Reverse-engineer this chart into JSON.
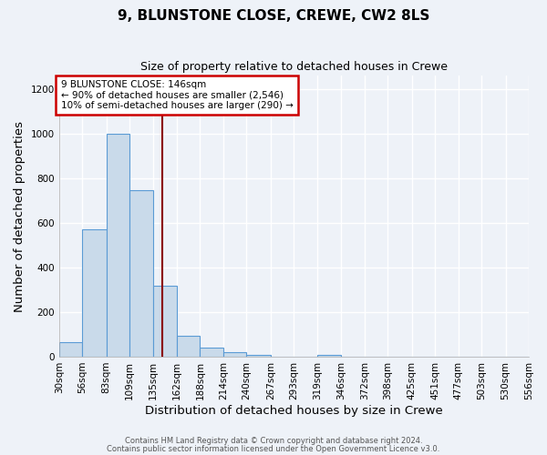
{
  "title": "9, BLUNSTONE CLOSE, CREWE, CW2 8LS",
  "subtitle": "Size of property relative to detached houses in Crewe",
  "xlabel": "Distribution of detached houses by size in Crewe",
  "ylabel": "Number of detached properties",
  "bar_edges": [
    30,
    56,
    83,
    109,
    135,
    162,
    188,
    214,
    240,
    267,
    293,
    319,
    346,
    372,
    398,
    425,
    451,
    477,
    503,
    530,
    556
  ],
  "bar_heights": [
    65,
    570,
    1000,
    745,
    320,
    95,
    40,
    22,
    10,
    0,
    0,
    10,
    0,
    0,
    0,
    0,
    0,
    0,
    0,
    0
  ],
  "bar_color": "#c9daea",
  "bar_edge_color": "#5b9bd5",
  "vline_x": 146,
  "vline_color": "#8b0000",
  "ann_line1": "9 BLUNSTONE CLOSE: 146sqm",
  "ann_line2": "← 90% of detached houses are smaller (2,546)",
  "ann_line3": "10% of semi-detached houses are larger (290) →",
  "annotation_box_color": "#ffffff",
  "annotation_box_edge_color": "#cc0000",
  "ylim": [
    0,
    1260
  ],
  "yticks": [
    0,
    200,
    400,
    600,
    800,
    1000,
    1200
  ],
  "background_color": "#eef2f8",
  "grid_color": "#ffffff",
  "footer_line1": "Contains HM Land Registry data © Crown copyright and database right 2024.",
  "footer_line2": "Contains public sector information licensed under the Open Government Licence v3.0.",
  "tick_label_size": 7.5,
  "axis_label_size": 9.5,
  "title_size": 11,
  "subtitle_size": 9
}
